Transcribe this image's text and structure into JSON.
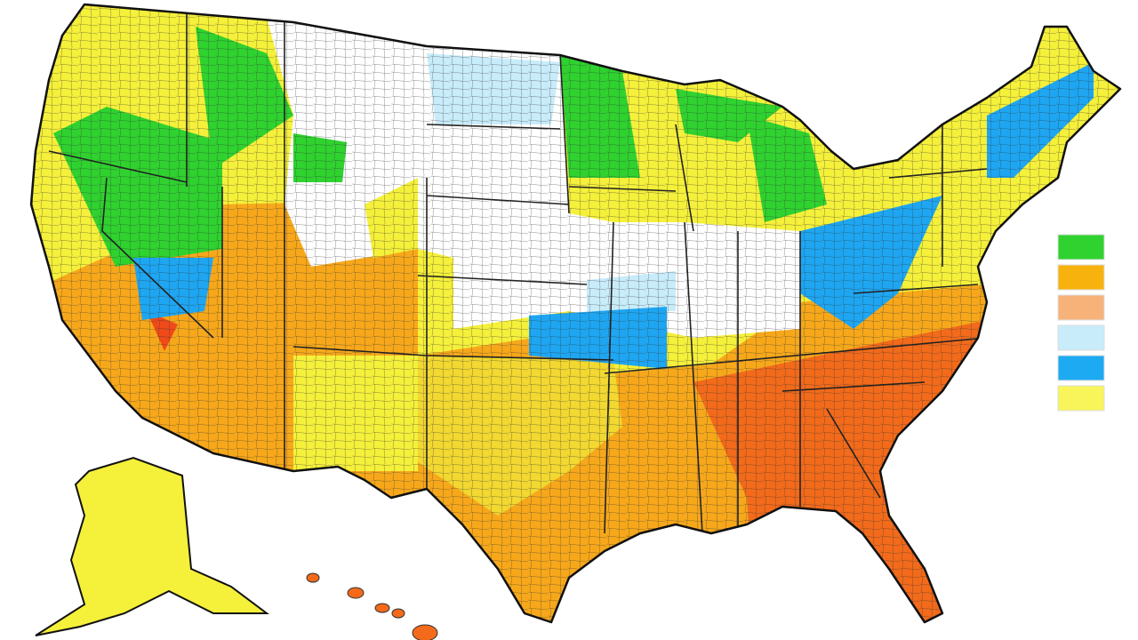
{
  "legend": {
    "colors": [
      "#2fd22f",
      "#f7b20d",
      "#f7b27a",
      "#c8ecfa",
      "#1eaaf2",
      "#f8f55a"
    ]
  }
}
